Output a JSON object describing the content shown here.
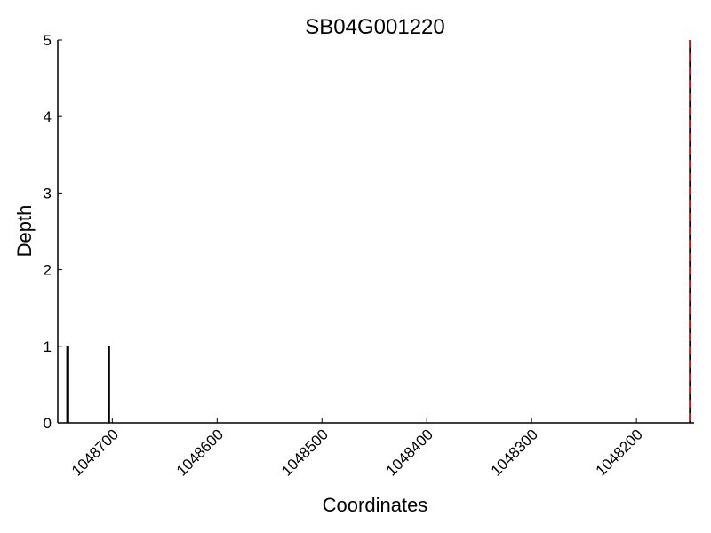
{
  "chart_data": {
    "type": "bar",
    "title": "SB04G001220",
    "xlabel": "Coordinates",
    "ylabel": "Depth",
    "x_axis_reversed": true,
    "xlim": [
      1048752,
      1048145
    ],
    "ylim": [
      0,
      5
    ],
    "x_ticks": [
      1048700,
      1048600,
      1048500,
      1048400,
      1048300,
      1048200
    ],
    "y_ticks": [
      0,
      1,
      2,
      3,
      4,
      5
    ],
    "grid": false,
    "series": [
      {
        "points": [
          {
            "x": 1048743,
            "y": 1
          },
          {
            "x": 1048742,
            "y": 1
          },
          {
            "x": 1048703,
            "y": 1
          },
          {
            "x": 1048149,
            "y": 5
          }
        ]
      }
    ],
    "reference_lines": [
      {
        "x": 1048149,
        "style": "dashed",
        "color": "#ff0000"
      }
    ]
  }
}
